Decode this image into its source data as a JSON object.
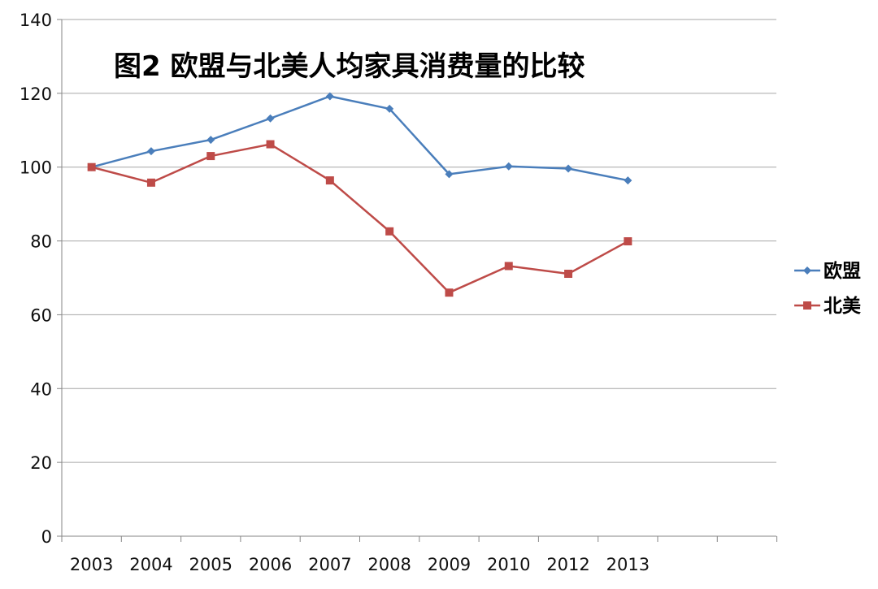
{
  "chart_data": {
    "type": "line",
    "title": "图2 欧盟与北美人均家具消费量的比较",
    "xlabel": "",
    "ylabel": "",
    "categories": [
      "2003",
      "2004",
      "2005",
      "2006",
      "2007",
      "2008",
      "2009",
      "2010",
      "2012",
      "2013"
    ],
    "ylim": [
      0,
      140
    ],
    "yticks": [
      0,
      20,
      40,
      60,
      80,
      100,
      120,
      140
    ],
    "grid": true,
    "legend_position": "right",
    "series": [
      {
        "name": "欧盟",
        "color": "#4A7EBB",
        "marker": "diamond",
        "values": [
          100,
          104.3,
          107.4,
          113.2,
          119.2,
          115.8,
          98.1,
          100.2,
          99.6,
          96.4
        ]
      },
      {
        "name": "北美",
        "color": "#BE4B48",
        "marker": "square",
        "values": [
          100,
          95.8,
          103.0,
          106.2,
          96.4,
          82.6,
          66.0,
          73.2,
          71.1,
          79.9
        ]
      }
    ]
  }
}
